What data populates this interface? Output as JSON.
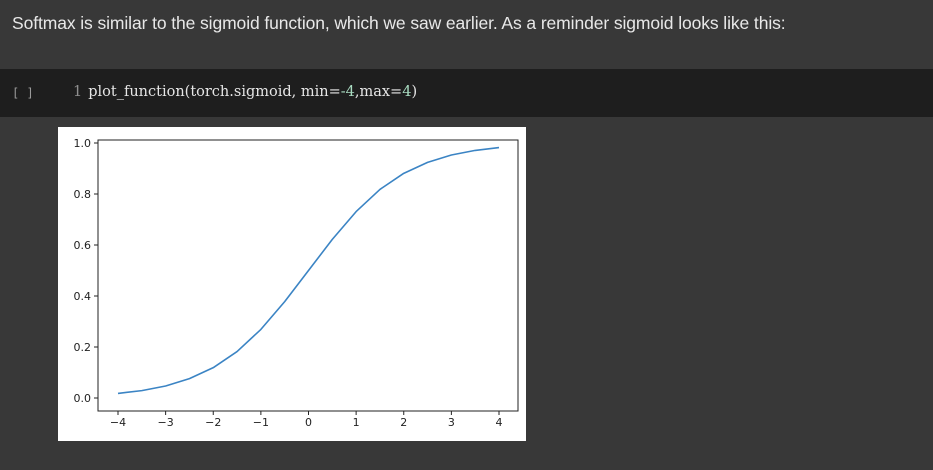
{
  "notebook": {
    "markdown_text": "Softmax is similar to the sigmoid function, which we saw earlier. As a reminder sigmoid looks like this:",
    "code_cell": {
      "run_indicator": "[ ]",
      "line_number": "1",
      "code_tokens": {
        "prefix": "plot_function(torch.sigmoid, min=",
        "min_value": "-4",
        "separator": ",max=",
        "max_value": "4",
        "suffix": ")"
      }
    }
  },
  "colors": {
    "background": "#383838",
    "code_background": "#1e1e1e",
    "text": "#e8e8e8",
    "number_literal": "#a9dcc1",
    "line_color": "#3b84c4"
  },
  "chart_data": {
    "type": "line",
    "title": "",
    "xlabel": "",
    "ylabel": "",
    "function": "sigmoid",
    "xlim": [
      -4,
      4
    ],
    "ylim": [
      0,
      1
    ],
    "x_ticks": [
      -4,
      -3,
      -2,
      -1,
      0,
      1,
      2,
      3,
      4
    ],
    "x_tick_labels": [
      "−4",
      "−3",
      "−2",
      "−1",
      "0",
      "1",
      "2",
      "3",
      "4"
    ],
    "y_ticks": [
      0.0,
      0.2,
      0.4,
      0.6,
      0.8,
      1.0
    ],
    "y_tick_labels": [
      "0.0",
      "0.2",
      "0.4",
      "0.6",
      "0.8",
      "1.0"
    ],
    "grid": false,
    "series": [
      {
        "x": [
          -4,
          -3.5,
          -3,
          -2.5,
          -2,
          -1.5,
          -1,
          -0.5,
          0,
          0.5,
          1,
          1.5,
          2,
          2.5,
          3,
          3.5,
          4
        ],
        "y": [
          0.018,
          0.029,
          0.047,
          0.076,
          0.119,
          0.182,
          0.269,
          0.378,
          0.5,
          0.622,
          0.731,
          0.818,
          0.881,
          0.924,
          0.953,
          0.971,
          0.982
        ]
      }
    ]
  }
}
